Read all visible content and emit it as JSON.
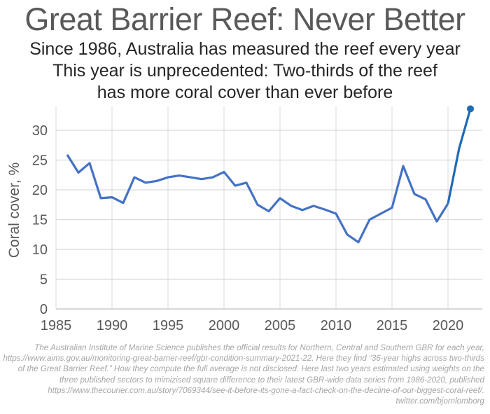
{
  "chart_data": {
    "type": "line",
    "title": "Great Barrier Reef: Never Better",
    "subtitle": [
      "Since 1986, Australia has measured the reef every year",
      "This year is unprecedented: Two-thirds of the reef",
      "has more coral cover than ever before"
    ],
    "xlabel": "",
    "ylabel": "Coral cover, %",
    "xlim": [
      1985,
      2022
    ],
    "ylim": [
      0,
      34
    ],
    "xticks": [
      1985,
      1990,
      1995,
      2000,
      2005,
      2010,
      2015,
      2020
    ],
    "yticks": [
      0,
      5,
      10,
      15,
      20,
      25,
      30
    ],
    "grid": true,
    "x": [
      1986,
      1987,
      1988,
      1989,
      1990,
      1991,
      1992,
      1993,
      1994,
      1995,
      1996,
      1997,
      1998,
      1999,
      2000,
      2001,
      2002,
      2003,
      2004,
      2005,
      2006,
      2007,
      2008,
      2009,
      2010,
      2011,
      2012,
      2013,
      2014,
      2015,
      2016,
      2017,
      2018,
      2019,
      2020,
      2021,
      2022
    ],
    "y": [
      25.9,
      22.9,
      24.5,
      18.6,
      18.75,
      17.8,
      22.1,
      21.2,
      21.5,
      22.1,
      22.4,
      22.1,
      21.8,
      22.1,
      23.0,
      20.7,
      21.2,
      17.5,
      16.4,
      18.6,
      17.3,
      16.6,
      17.3,
      16.7,
      16.0,
      12.5,
      11.2,
      15.0,
      16.0,
      17.0,
      24.0,
      19.3,
      18.4,
      14.7,
      17.7,
      27.0,
      33.6
    ],
    "estimated_from_year": 2020,
    "colors": {
      "series": "#4472c4",
      "estimated": "#1f6bb5",
      "grid": "#d9d9d9",
      "axis_text": "#595959"
    }
  },
  "footnote": "The Australian Institute of Marine Science publishes the official results for Northern, Central and Southern GBR for each year, https://www.aims.gov.au/monitoring-great-barrier-reef/gbr-condition-summary-2021-22. Here they find “36-year highs across two-thirds of the Great Barrier Reef.” How they compute the full average is not disclosed. Here last two years estimated using weights on the three published sectors to mimizised square difference to their latest GBR-wide data series from 1986-2020, published https://www.thecourier.com.au/story/7069344/see-it-before-its-gone-a-fact-check-on-the-decline-of-our-biggest-coral-reef/. twitter.com/bjornlomborg"
}
